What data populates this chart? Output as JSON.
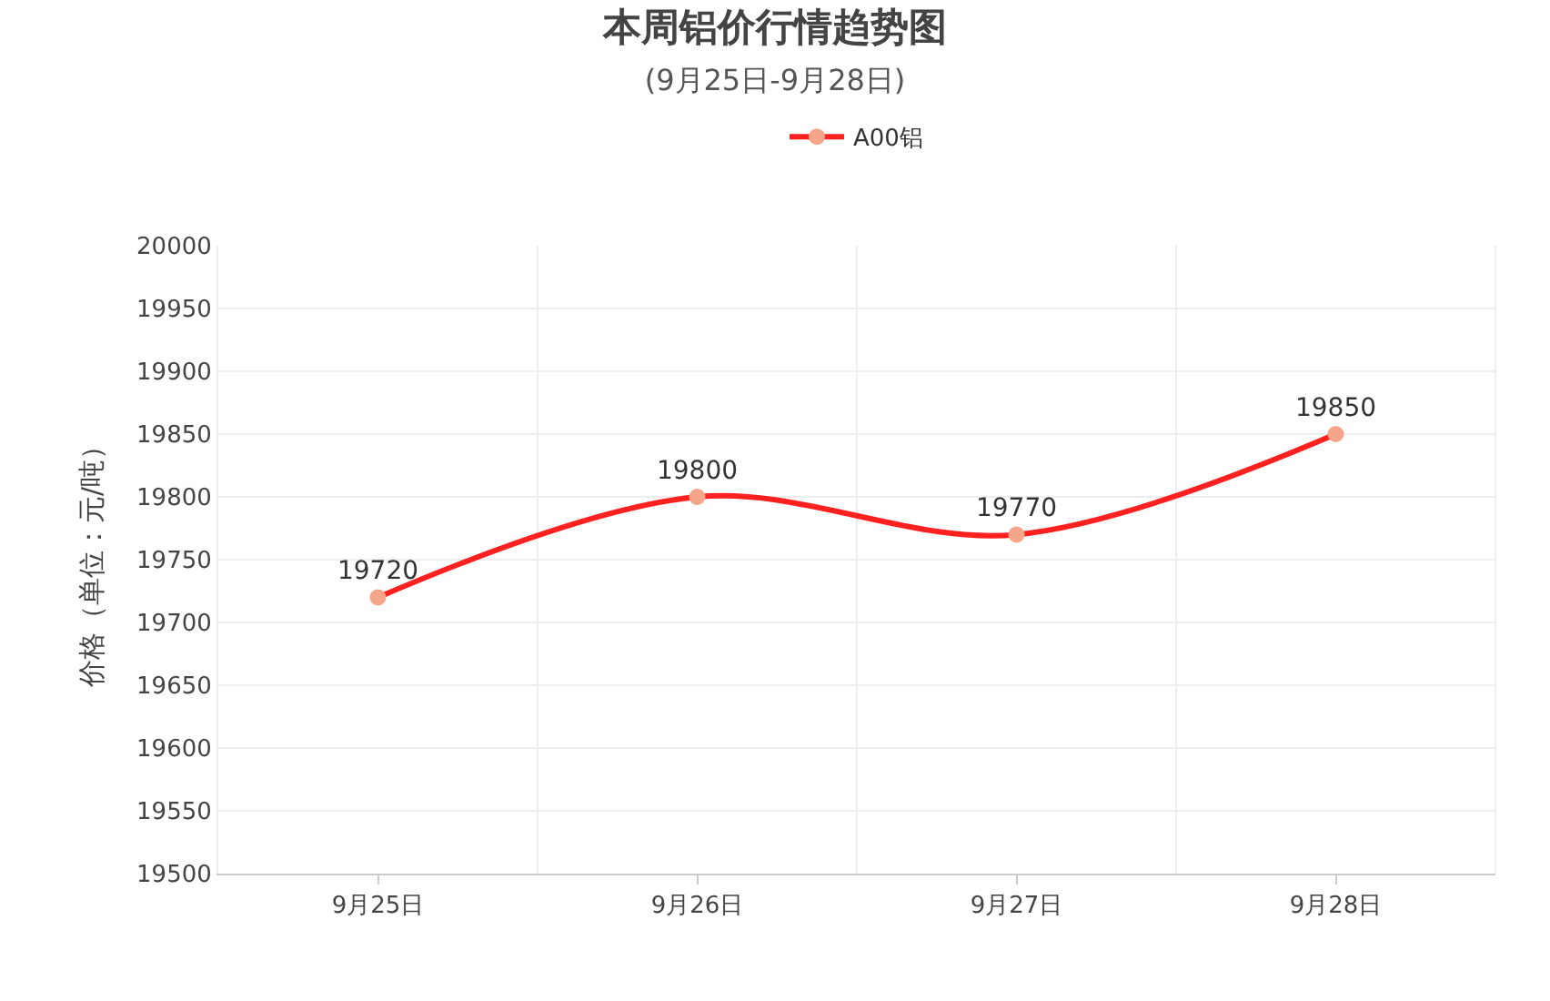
{
  "chart_data": {
    "type": "line",
    "title": "本周铝价行情趋势图",
    "subtitle": "(9月25日-9月28日)",
    "ylabel": "价格（单位：元/吨）",
    "categories": [
      "9月25日",
      "9月26日",
      "9月27日",
      "9月28日"
    ],
    "series": [
      {
        "name": "A00铝",
        "color": "#ff2020",
        "colors": [
          "#f4a58a",
          "#f4a58a",
          "#f4a58a",
          "#f4a58a"
        ],
        "values": [
          19720,
          19800,
          19770,
          19850
        ]
      }
    ],
    "ylim": [
      19500,
      20000
    ],
    "yticks": [
      19500,
      19550,
      19600,
      19650,
      19700,
      19750,
      19800,
      19850,
      19900,
      19950,
      20000
    ],
    "grid": true,
    "legend": "top",
    "marker": "circle",
    "line_style": "solid",
    "data_labels": true
  }
}
